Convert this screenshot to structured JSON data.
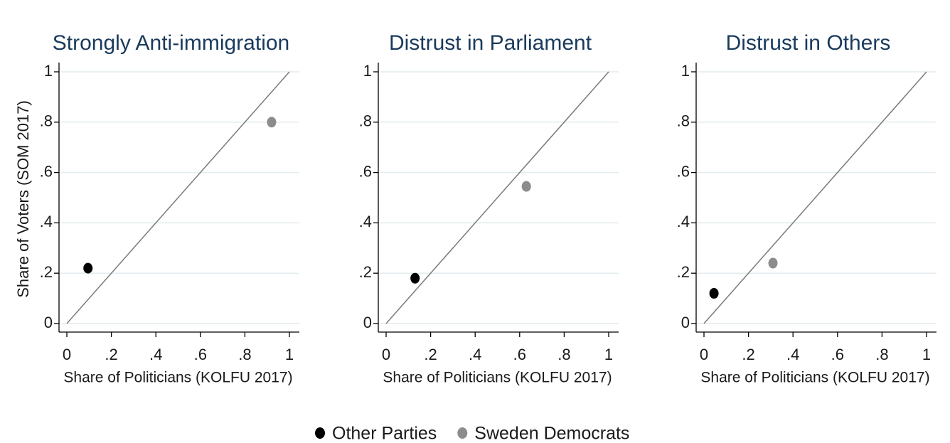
{
  "chart_data": [
    {
      "type": "scatter",
      "title": "Strongly Anti-immigration",
      "x_label": "Share of Politicians (KOLFU 2017)",
      "y_label": "Share of Voters (SOM 2017)",
      "series": [
        {
          "name": "Other Parties",
          "color": "#000000",
          "x": [
            0.095
          ],
          "values": [
            0.22
          ]
        },
        {
          "name": "Sweden Democrats",
          "color": "#8c8c8c",
          "x": [
            0.92
          ],
          "values": [
            0.8
          ]
        }
      ],
      "xlim": [
        0,
        1
      ],
      "ylim": [
        0,
        1
      ],
      "xticks": [
        0,
        {
          "value": 0.2,
          "label": ".2"
        },
        {
          "value": 0.4,
          "label": ".4"
        },
        {
          "value": 0.6,
          "label": ".6"
        },
        {
          "value": 0.8,
          "label": ".8"
        },
        1
      ],
      "yticks": [
        0,
        {
          "value": 0.2,
          "label": ".2"
        },
        {
          "value": 0.4,
          "label": ".4"
        },
        {
          "value": 0.6,
          "label": ".6"
        },
        {
          "value": 0.8,
          "label": ".8"
        },
        1
      ],
      "grid": true,
      "diagonal_line": true,
      "legend": "bottom"
    },
    {
      "type": "scatter",
      "title": "Distrust in Parliament",
      "x_label": "Share of Politicians (KOLFU 2017)",
      "series": [
        {
          "color": "#000000",
          "x": [
            0.13
          ],
          "values": [
            0.18
          ]
        },
        {
          "color": "#8c8c8c",
          "x": [
            0.63
          ],
          "values": [
            0.545
          ]
        }
      ],
      "xlim": [
        0,
        1
      ],
      "ylim": [
        0,
        1
      ],
      "xticks": [
        0,
        {
          "value": 0.2,
          "label": ".2"
        },
        {
          "value": 0.4,
          "label": ".4"
        },
        {
          "value": 0.6,
          "label": ".6"
        },
        {
          "value": 0.8,
          "label": ".8"
        },
        1
      ],
      "yticks": [
        0,
        {
          "value": 0.2,
          "label": ".2"
        },
        {
          "value": 0.4,
          "label": ".4"
        },
        {
          "value": 0.6,
          "label": ".6"
        },
        {
          "value": 0.8,
          "label": ".8"
        },
        1
      ],
      "grid": true,
      "diagonal_line": true
    },
    {
      "type": "scatter",
      "title": "Distrust in Others",
      "x_label": "Share of Politicians (KOLFU 2017)",
      "series": [
        {
          "color": "#000000",
          "x": [
            0.045
          ],
          "values": [
            0.12
          ]
        },
        {
          "color": "#8c8c8c",
          "x": [
            0.31
          ],
          "values": [
            0.24
          ]
        }
      ],
      "xlim": [
        0,
        1
      ],
      "ylim": [
        0,
        1
      ],
      "xticks": [
        0,
        {
          "value": 0.2,
          "label": ".2"
        },
        {
          "value": 0.4,
          "label": ".4"
        },
        {
          "value": 0.6,
          "label": ".6"
        },
        {
          "value": 0.8,
          "label": ".8"
        },
        1
      ],
      "yticks": [
        0,
        {
          "value": 0.2,
          "label": ".2"
        },
        {
          "value": 0.4,
          "label": ".4"
        },
        {
          "value": 0.6,
          "label": ".6"
        },
        {
          "value": 0.8,
          "label": ".8"
        },
        1
      ],
      "grid": true,
      "diagonal_line": true
    }
  ]
}
